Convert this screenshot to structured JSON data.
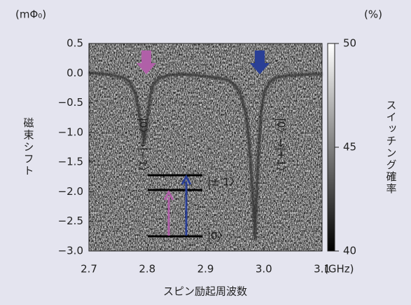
{
  "chart_data": {
    "type": "line",
    "y_label": "磁束シフト",
    "y_unit": "(mΦ₀)",
    "x_label": "スピン励起周波数",
    "x_unit": "(GHz)",
    "xlim": [
      2.7,
      3.1
    ],
    "xticks": [
      2.7,
      2.8,
      2.9,
      3.0,
      3.1
    ],
    "ylim": [
      -3.0,
      0.5
    ],
    "yticks": [
      0.5,
      0.0,
      -0.5,
      -1.0,
      -1.5,
      -2.0,
      -2.5,
      -3.0
    ],
    "series": [
      {
        "name": null,
        "color": "#333333",
        "x": [
          2.7,
          2.72,
          2.74,
          2.76,
          2.77,
          2.78,
          2.785,
          2.79,
          2.795,
          2.8,
          2.805,
          2.81,
          2.82,
          2.84,
          2.86,
          2.88,
          2.9,
          2.92,
          2.94,
          2.95,
          2.96,
          2.97,
          2.975,
          2.98,
          2.985,
          2.99,
          2.995,
          3.0,
          3.01,
          3.02,
          3.04,
          3.06,
          3.08,
          3.1
        ],
        "values": [
          0,
          -0.01,
          -0.03,
          -0.08,
          -0.15,
          -0.35,
          -0.6,
          -0.9,
          -1.15,
          -0.8,
          -0.4,
          -0.2,
          -0.08,
          -0.03,
          -0.02,
          -0.03,
          -0.05,
          -0.08,
          -0.12,
          -0.2,
          -0.35,
          -0.7,
          -1.2,
          -1.9,
          -2.8,
          -1.5,
          -0.7,
          -0.35,
          -0.15,
          -0.08,
          -0.04,
          -0.03,
          -0.02,
          -0.02
        ]
      }
    ],
    "colorbar": {
      "label": "スイッチング確率",
      "unit": "(%)",
      "lim": [
        40,
        50
      ],
      "ticks": [
        40,
        45,
        50
      ]
    },
    "annotations": [
      {
        "text": "|0〉→|−1〉",
        "color": "#b060a8"
      },
      {
        "text": "|0〉→|+1〉",
        "color": "#2a3f96"
      },
      {
        "text": "|± 1〉",
        "color": "#222222"
      },
      {
        "text": "|0〉",
        "color": "#222222"
      }
    ]
  }
}
